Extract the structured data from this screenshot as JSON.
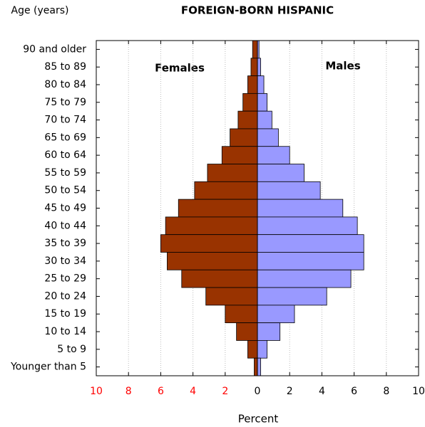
{
  "chart_data": {
    "type": "pyramid",
    "title": "FOREIGN-BORN HISPANIC",
    "y_axis_label": "Age (years)",
    "x_axis_label": "Percent",
    "categories": [
      "90 and older",
      "85 to 89",
      "80 to 84",
      "75 to 79",
      "70 to 74",
      "65 to 69",
      "60 to 64",
      "55 to 59",
      "50 to 54",
      "45 to 49",
      "40 to 44",
      "35 to 39",
      "30 to 34",
      "25 to 29",
      "20 to 24",
      "15 to 19",
      "10 to 14",
      "5 to 9",
      "Younger than 5"
    ],
    "series": [
      {
        "name": "Females",
        "color": "#993300",
        "values": [
          -0.3,
          -0.4,
          -0.6,
          -0.9,
          -1.2,
          -1.7,
          -2.2,
          -3.1,
          -3.9,
          -4.9,
          -5.7,
          -6.0,
          -5.6,
          -4.7,
          -3.2,
          -2.0,
          -1.3,
          -0.6,
          -0.2
        ]
      },
      {
        "name": "Males",
        "color": "#9999ff",
        "values": [
          0.1,
          0.2,
          0.4,
          0.6,
          0.9,
          1.3,
          2.0,
          2.9,
          3.9,
          5.3,
          6.2,
          6.6,
          6.6,
          5.8,
          4.3,
          2.3,
          1.4,
          0.6,
          0.2
        ]
      }
    ],
    "xlim": [
      -10,
      10
    ],
    "xticks": [
      {
        "value": -10,
        "label": "10"
      },
      {
        "value": -8,
        "label": "8"
      },
      {
        "value": -6,
        "label": "6"
      },
      {
        "value": -4,
        "label": "4"
      },
      {
        "value": -2,
        "label": "2"
      },
      0,
      2,
      4,
      6,
      8,
      10
    ],
    "negative_tick_color": "#ff0000",
    "grid": true
  }
}
